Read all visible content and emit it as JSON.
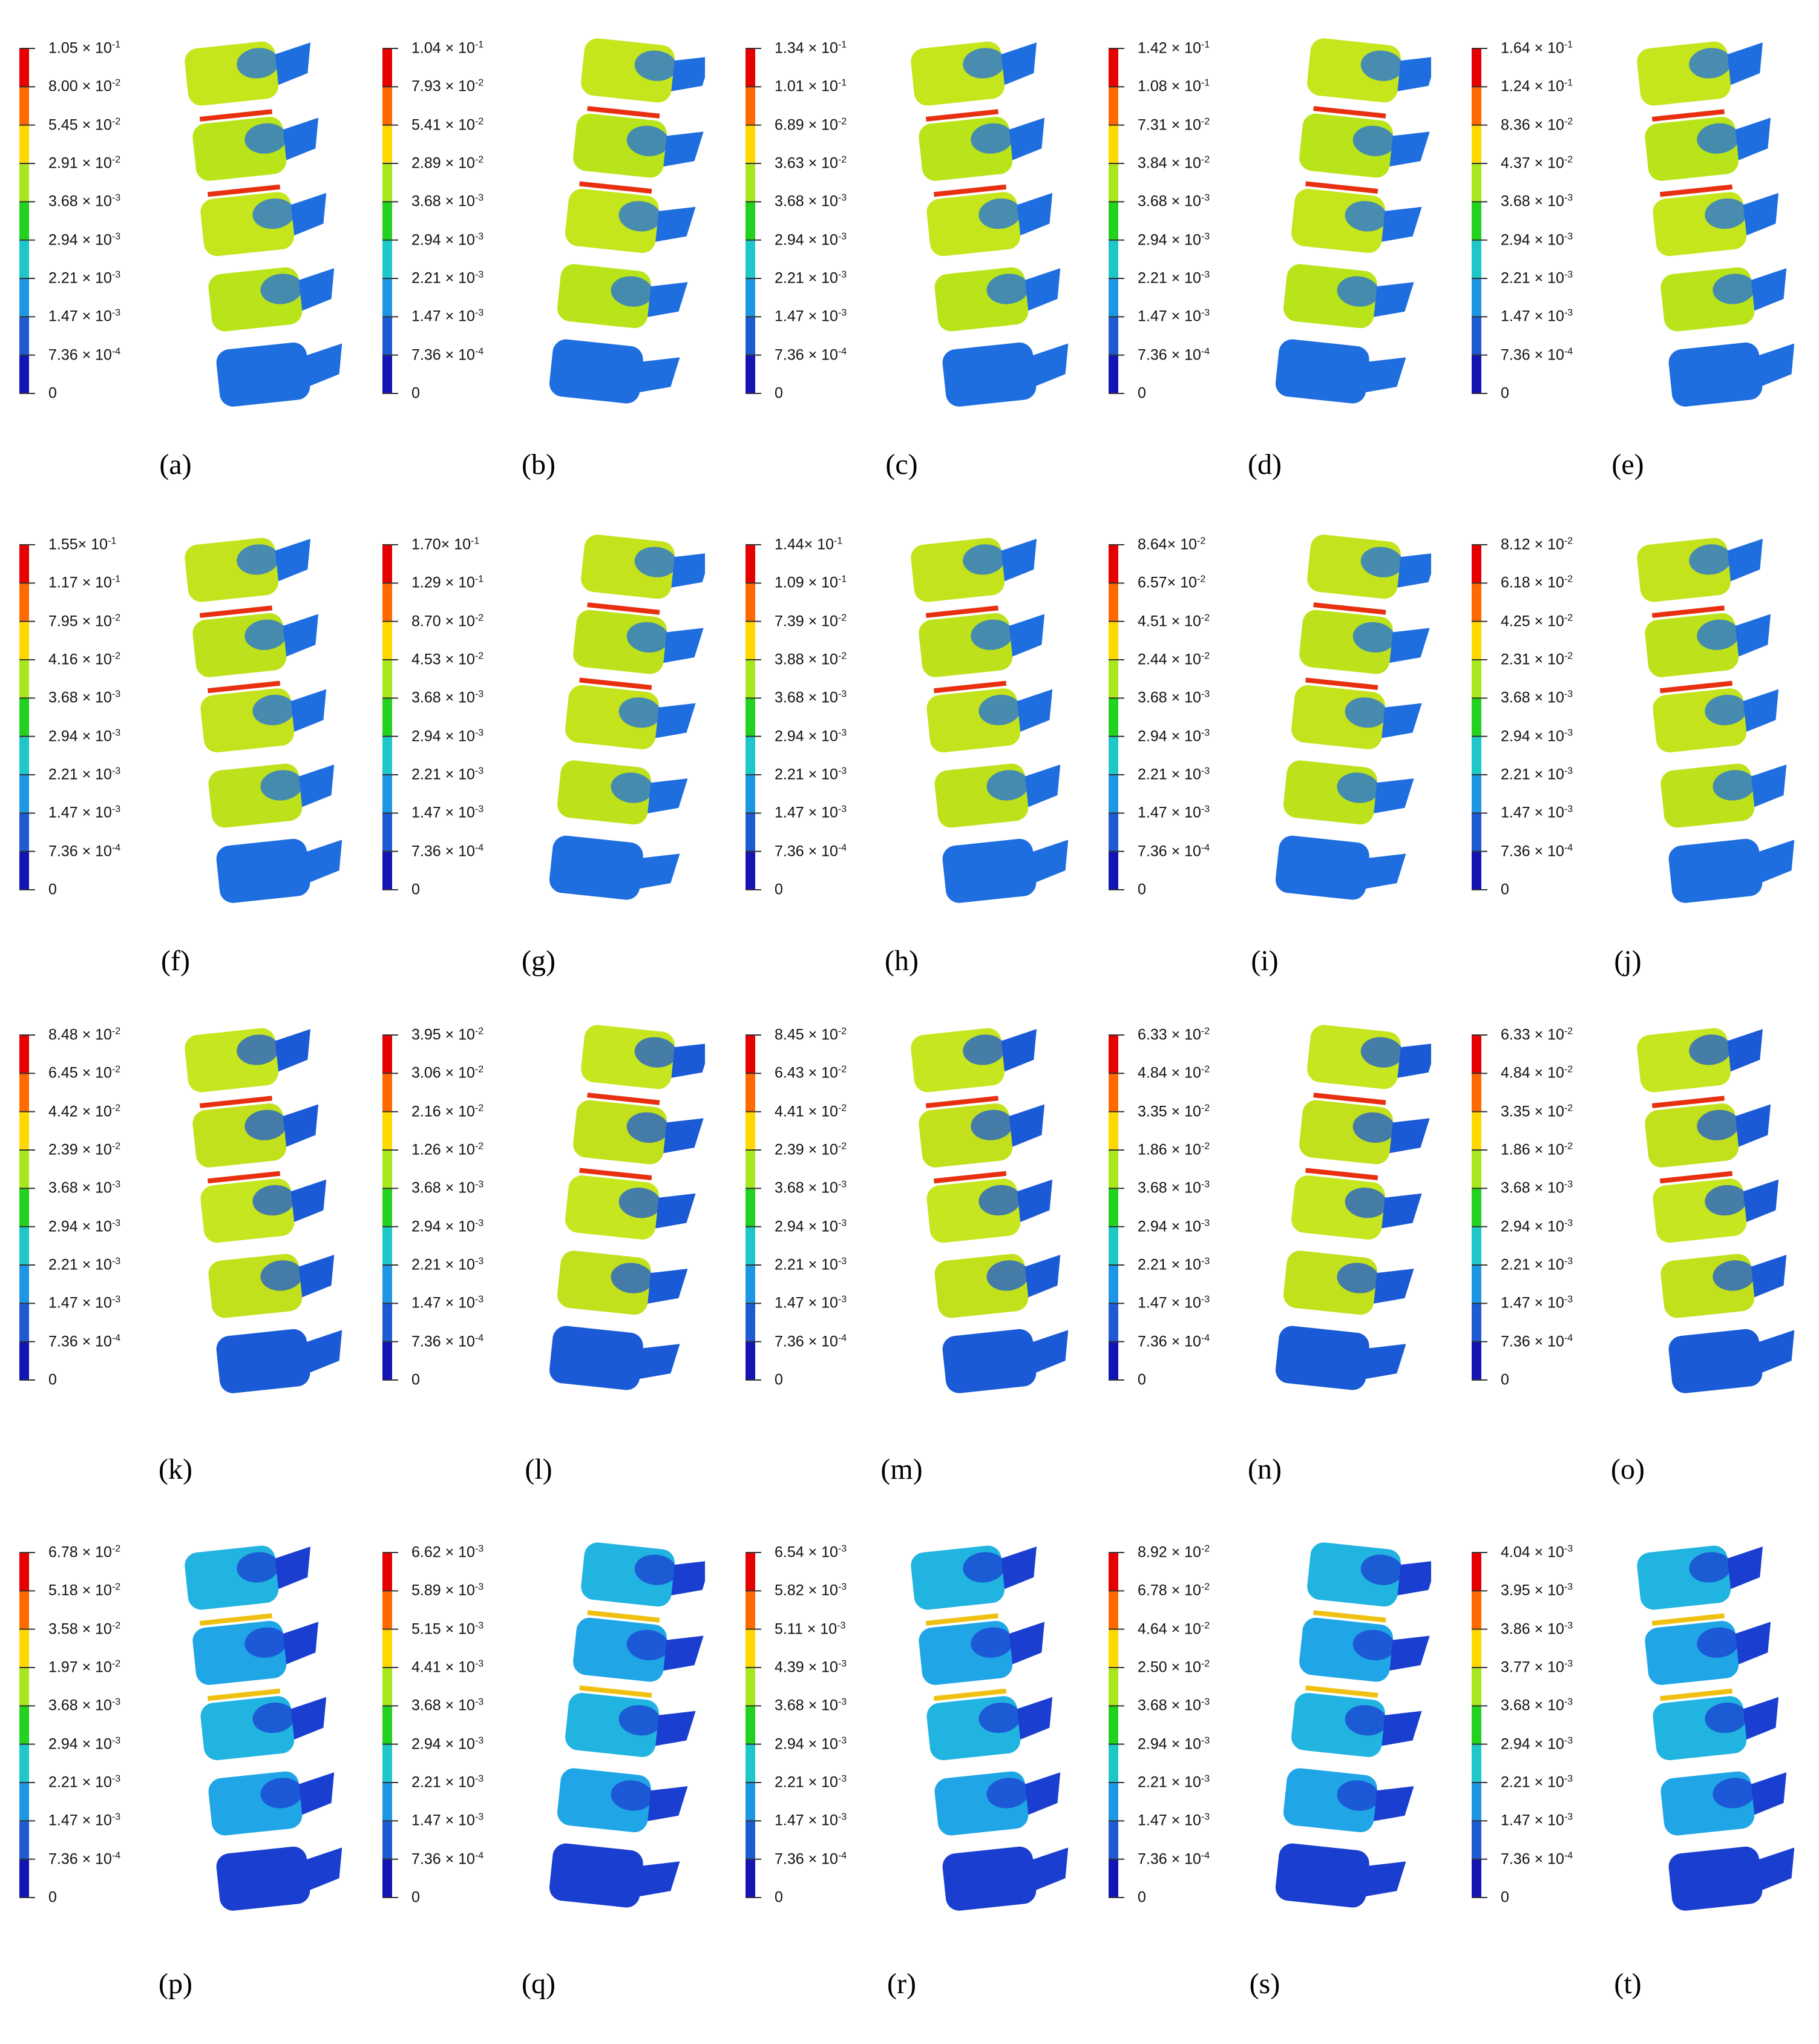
{
  "figure": {
    "colorbar_colors": [
      "#e60000",
      "#ff6a00",
      "#ffd800",
      "#a8e61e",
      "#22d21e",
      "#1ec8c8",
      "#1e96e6",
      "#1e5ad2",
      "#1414b4"
    ],
    "panels": [
      {
        "id": "a",
        "label": "(a)",
        "legend": [
          "1.05 × 10^-1",
          "8.00 × 10^-2",
          "5.45 × 10^-2",
          "2.91 × 10^-2",
          "3.68 × 10^-3",
          "2.94 × 10^-3",
          "2.21 × 10^-3",
          "1.47 × 10^-3",
          "7.36 × 10^-4",
          "0"
        ]
      },
      {
        "id": "b",
        "label": "(b)",
        "legend": [
          "1.04 × 10^-1",
          "7.93 × 10^-2",
          "5.41 × 10^-2",
          "2.89 × 10^-2",
          "3.68 × 10^-3",
          "2.94 × 10^-3",
          "2.21 × 10^-3",
          "1.47 × 10^-3",
          "7.36 × 10^-4",
          "0"
        ]
      },
      {
        "id": "c",
        "label": "(c)",
        "legend": [
          "1.34 × 10^-1",
          "1.01 × 10^-1",
          "6.89 × 10^-2",
          "3.63 × 10^-2",
          "3.68 × 10^-3",
          "2.94 × 10^-3",
          "2.21 × 10^-3",
          "1.47 × 10^-3",
          "7.36 × 10^-4",
          "0"
        ]
      },
      {
        "id": "d",
        "label": "(d)",
        "legend": [
          "1.42 × 10^-1",
          "1.08 × 10^-1",
          "7.31 × 10^-2",
          "3.84 × 10^-2",
          "3.68 × 10^-3",
          "2.94 × 10^-3",
          "2.21 × 10^-3",
          "1.47 × 10^-3",
          "7.36 × 10^-4",
          "0"
        ]
      },
      {
        "id": "e",
        "label": "(e)",
        "legend": [
          "1.64 × 10^-1",
          "1.24 × 10^-1",
          "8.36 × 10^-2",
          "4.37 × 10^-2",
          "3.68 × 10^-3",
          "2.94 × 10^-3",
          "2.21 × 10^-3",
          "1.47 × 10^-3",
          "7.36 × 10^-4",
          "0"
        ]
      },
      {
        "id": "f",
        "label": "(f)",
        "legend": [
          "1.55× 10^-1",
          "1.17 × 10^-1",
          "7.95 × 10^-2",
          "4.16 × 10^-2",
          "3.68 × 10^-3",
          "2.94 × 10^-3",
          "2.21 × 10^-3",
          "1.47 × 10^-3",
          "7.36 × 10^-4",
          "0"
        ]
      },
      {
        "id": "g",
        "label": "(g)",
        "legend": [
          "1.70× 10^-1",
          "1.29 × 10^-1",
          "8.70 × 10^-2",
          "4.53 × 10^-2",
          "3.68 × 10^-3",
          "2.94 × 10^-3",
          "2.21 × 10^-3",
          "1.47 × 10^-3",
          "7.36 × 10^-4",
          "0"
        ]
      },
      {
        "id": "h",
        "label": "(h)",
        "legend": [
          "1.44× 10^-1",
          "1.09 × 10^-1",
          "7.39 × 10^-2",
          "3.88 × 10^-2",
          "3.68 × 10^-3",
          "2.94 × 10^-3",
          "2.21 × 10^-3",
          "1.47 × 10^-3",
          "7.36 × 10^-4",
          "0"
        ]
      },
      {
        "id": "i",
        "label": "(i)",
        "legend": [
          "8.64× 10^-2",
          "6.57× 10^-2",
          "4.51 × 10^-2",
          "2.44 × 10^-2",
          "3.68 × 10^-3",
          "2.94 × 10^-3",
          "2.21 × 10^-3",
          "1.47 × 10^-3",
          "7.36 × 10^-4",
          "0"
        ]
      },
      {
        "id": "j",
        "label": "(j)",
        "legend": [
          "8.12 × 10^-2",
          "6.18 × 10^-2",
          "4.25 × 10^-2",
          "2.31 × 10^-2",
          "3.68 × 10^-3",
          "2.94 × 10^-3",
          "2.21 × 10^-3",
          "1.47 × 10^-3",
          "7.36 × 10^-4",
          "0"
        ]
      },
      {
        "id": "k",
        "label": "(k)",
        "legend": [
          "8.48 × 10^-2",
          "6.45 × 10^-2",
          "4.42 × 10^-2",
          "2.39 × 10^-2",
          "3.68 × 10^-3",
          "2.94 × 10^-3",
          "2.21 × 10^-3",
          "1.47 × 10^-3",
          "7.36 × 10^-4",
          "0"
        ]
      },
      {
        "id": "l",
        "label": "(l)",
        "legend": [
          "3.95 × 10^-2",
          "3.06 × 10^-2",
          "2.16 × 10^-2",
          "1.26 × 10^-2",
          "3.68 × 10^-3",
          "2.94 × 10^-3",
          "2.21 × 10^-3",
          "1.47 × 10^-3",
          "7.36 × 10^-4",
          "0"
        ]
      },
      {
        "id": "m",
        "label": "(m)",
        "legend": [
          "8.45 × 10^-2",
          "6.43 × 10^-2",
          "4.41 × 10^-2",
          "2.39 × 10^-2",
          "3.68 × 10^-3",
          "2.94 × 10^-3",
          "2.21 × 10^-3",
          "1.47 × 10^-3",
          "7.36 × 10^-4",
          "0"
        ]
      },
      {
        "id": "n",
        "label": "(n)",
        "legend": [
          "6.33 × 10^-2",
          "4.84 × 10^-2",
          "3.35 × 10^-2",
          "1.86 × 10^-2",
          "3.68 × 10^-3",
          "2.94 × 10^-3",
          "2.21 × 10^-3",
          "1.47 × 10^-3",
          "7.36 × 10^-4",
          "0"
        ]
      },
      {
        "id": "o",
        "label": "(o)",
        "legend": [
          "6.33 × 10^-2",
          "4.84 × 10^-2",
          "3.35 × 10^-2",
          "1.86 × 10^-2",
          "3.68 × 10^-3",
          "2.94 × 10^-3",
          "2.21 × 10^-3",
          "1.47 × 10^-3",
          "7.36 × 10^-4",
          "0"
        ]
      },
      {
        "id": "p",
        "label": "(p)",
        "legend": [
          "6.78 × 10^-2",
          "5.18 × 10^-2",
          "3.58 × 10^-2",
          "1.97 × 10^-2",
          "3.68 × 10^-3",
          "2.94 × 10^-3",
          "2.21 × 10^-3",
          "1.47 × 10^-3",
          "7.36 × 10^-4",
          "0"
        ]
      },
      {
        "id": "q",
        "label": "(q)",
        "legend": [
          "6.62 × 10^-3",
          "5.89 × 10^-3",
          "5.15 × 10^-3",
          "4.41 × 10^-3",
          "3.68 × 10^-3",
          "2.94 × 10^-3",
          "2.21 × 10^-3",
          "1.47 × 10^-3",
          "7.36 × 10^-4",
          "0"
        ]
      },
      {
        "id": "r",
        "label": "(r)",
        "legend": [
          "6.54 × 10^-3",
          "5.82 × 10^-3",
          "5.11 × 10^-3",
          "4.39 × 10^-3",
          "3.68 × 10^-3",
          "2.94 × 10^-3",
          "2.21 × 10^-3",
          "1.47 × 10^-3",
          "7.36 × 10^-4",
          "0"
        ]
      },
      {
        "id": "s",
        "label": "(s)",
        "legend": [
          "8.92 × 10^-2",
          "6.78 × 10^-2",
          "4.64 × 10^-2",
          "2.50 × 10^-2",
          "3.68 × 10^-3",
          "2.94 × 10^-3",
          "2.21 × 10^-3",
          "1.47 × 10^-3",
          "7.36 × 10^-4",
          "0"
        ]
      },
      {
        "id": "t",
        "label": "(t)",
        "legend": [
          "4.04 × 10^-3",
          "3.95 × 10^-3",
          "3.86 × 10^-3",
          "3.77 × 10^-3",
          "3.68 × 10^-3",
          "2.94 × 10^-3",
          "2.21 × 10^-3",
          "1.47 × 10^-3",
          "7.36 × 10^-4",
          "0"
        ]
      }
    ]
  }
}
